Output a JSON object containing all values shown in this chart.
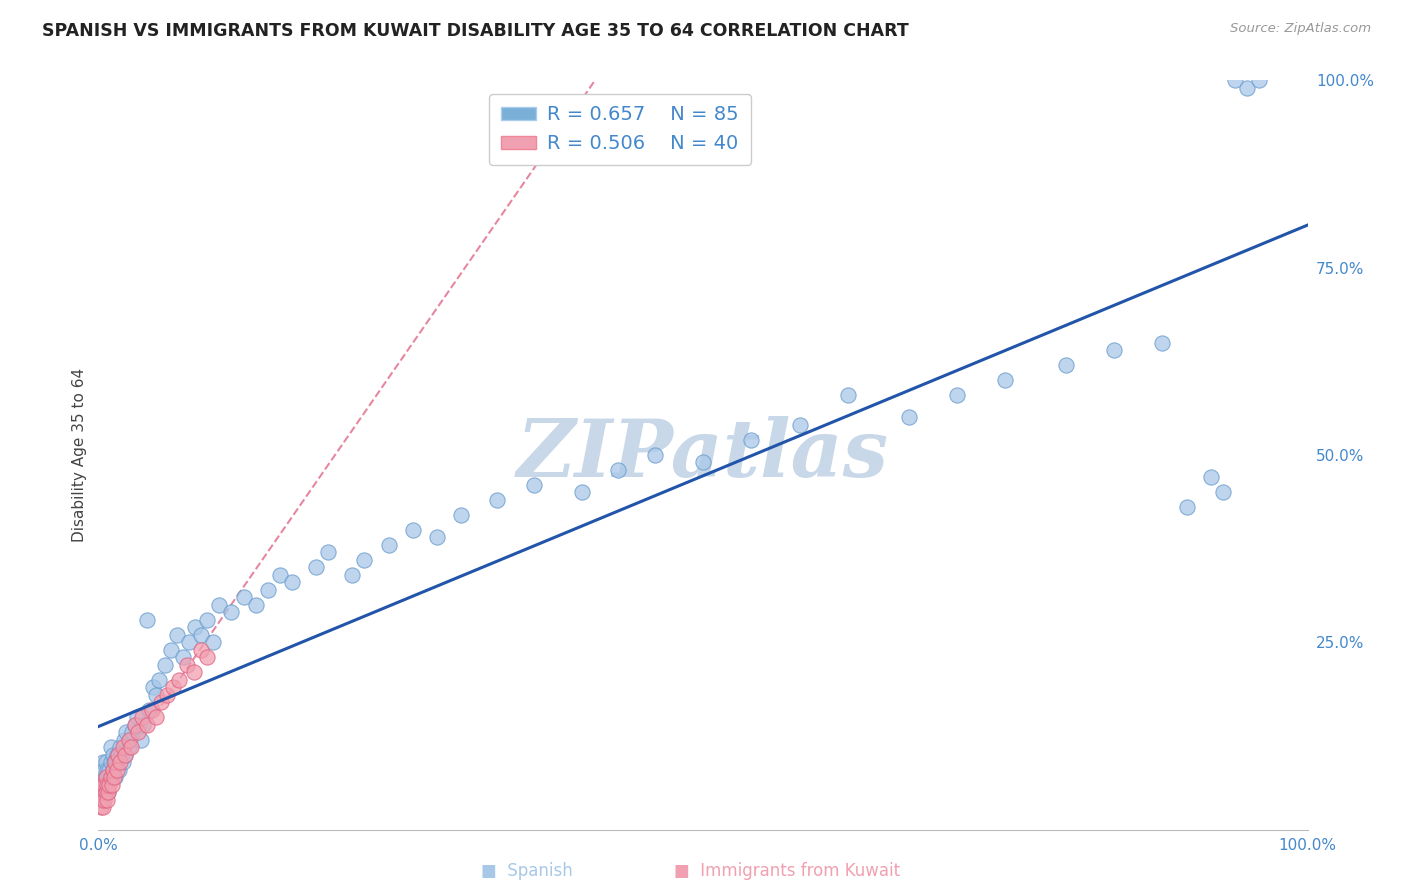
{
  "title": "SPANISH VS IMMIGRANTS FROM KUWAIT DISABILITY AGE 35 TO 64 CORRELATION CHART",
  "source": "Source: ZipAtlas.com",
  "ylabel": "Disability Age 35 to 64",
  "xlim": [
    0.0,
    1.0
  ],
  "ylim": [
    0.0,
    1.0
  ],
  "legend_r1": "R = 0.657",
  "legend_n1": "N = 85",
  "legend_r2": "R = 0.506",
  "legend_n2": "N = 40",
  "series1_label": "Spanish",
  "series2_label": "Immigrants from Kuwait",
  "series1_color": "#a8c8e8",
  "series2_color": "#f0a0b0",
  "series1_edge": "#6699cc",
  "series2_edge": "#e06080",
  "trend1_color": "#2255aa",
  "trend2_color": "#dd5577",
  "legend1_color": "#7ab0d8",
  "legend2_color": "#f0a0b0",
  "text_color_blue": "#4488cc",
  "watermark_color": "#c8d8e8",
  "background_color": "#ffffff",
  "title_fontsize": 12.5,
  "tick_fontsize": 11,
  "ylabel_fontsize": 11,
  "spanish_x": [
    0.003,
    0.004,
    0.004,
    0.005,
    0.005,
    0.006,
    0.006,
    0.007,
    0.007,
    0.008,
    0.008,
    0.009,
    0.01,
    0.01,
    0.01,
    0.012,
    0.012,
    0.013,
    0.014,
    0.015,
    0.016,
    0.017,
    0.018,
    0.019,
    0.02,
    0.021,
    0.022,
    0.023,
    0.025,
    0.026,
    0.028,
    0.03,
    0.032,
    0.035,
    0.037,
    0.04,
    0.042,
    0.045,
    0.048,
    0.05,
    0.055,
    0.06,
    0.065,
    0.07,
    0.075,
    0.08,
    0.085,
    0.09,
    0.095,
    0.1,
    0.11,
    0.12,
    0.13,
    0.14,
    0.15,
    0.16,
    0.18,
    0.19,
    0.21,
    0.22,
    0.24,
    0.26,
    0.28,
    0.3,
    0.33,
    0.36,
    0.4,
    0.43,
    0.46,
    0.5,
    0.54,
    0.58,
    0.62,
    0.67,
    0.71,
    0.75,
    0.8,
    0.84,
    0.88,
    0.9,
    0.92,
    0.93,
    0.94,
    0.95,
    0.96
  ],
  "spanish_y": [
    0.05,
    0.07,
    0.09,
    0.06,
    0.08,
    0.07,
    0.09,
    0.06,
    0.08,
    0.07,
    0.05,
    0.08,
    0.07,
    0.09,
    0.11,
    0.08,
    0.1,
    0.09,
    0.07,
    0.1,
    0.09,
    0.08,
    0.11,
    0.1,
    0.09,
    0.12,
    0.1,
    0.13,
    0.11,
    0.12,
    0.13,
    0.14,
    0.15,
    0.12,
    0.14,
    0.28,
    0.16,
    0.19,
    0.18,
    0.2,
    0.22,
    0.24,
    0.26,
    0.23,
    0.25,
    0.27,
    0.26,
    0.28,
    0.25,
    0.3,
    0.29,
    0.31,
    0.3,
    0.32,
    0.34,
    0.33,
    0.35,
    0.37,
    0.34,
    0.36,
    0.38,
    0.4,
    0.39,
    0.42,
    0.44,
    0.46,
    0.45,
    0.48,
    0.5,
    0.49,
    0.52,
    0.54,
    0.58,
    0.55,
    0.58,
    0.6,
    0.62,
    0.64,
    0.65,
    0.43,
    0.47,
    0.45,
    1.0,
    0.99,
    1.0
  ],
  "kuwait_x": [
    0.002,
    0.002,
    0.003,
    0.003,
    0.004,
    0.004,
    0.005,
    0.005,
    0.006,
    0.006,
    0.007,
    0.007,
    0.008,
    0.009,
    0.01,
    0.011,
    0.012,
    0.013,
    0.014,
    0.015,
    0.016,
    0.018,
    0.02,
    0.022,
    0.025,
    0.027,
    0.03,
    0.033,
    0.036,
    0.04,
    0.044,
    0.048,
    0.052,
    0.057,
    0.062,
    0.067,
    0.073,
    0.079,
    0.085,
    0.09
  ],
  "kuwait_y": [
    0.03,
    0.05,
    0.04,
    0.06,
    0.03,
    0.05,
    0.04,
    0.06,
    0.05,
    0.07,
    0.04,
    0.06,
    0.05,
    0.06,
    0.07,
    0.06,
    0.08,
    0.07,
    0.09,
    0.08,
    0.1,
    0.09,
    0.11,
    0.1,
    0.12,
    0.11,
    0.14,
    0.13,
    0.15,
    0.14,
    0.16,
    0.15,
    0.17,
    0.18,
    0.19,
    0.2,
    0.22,
    0.21,
    0.24,
    0.23
  ]
}
